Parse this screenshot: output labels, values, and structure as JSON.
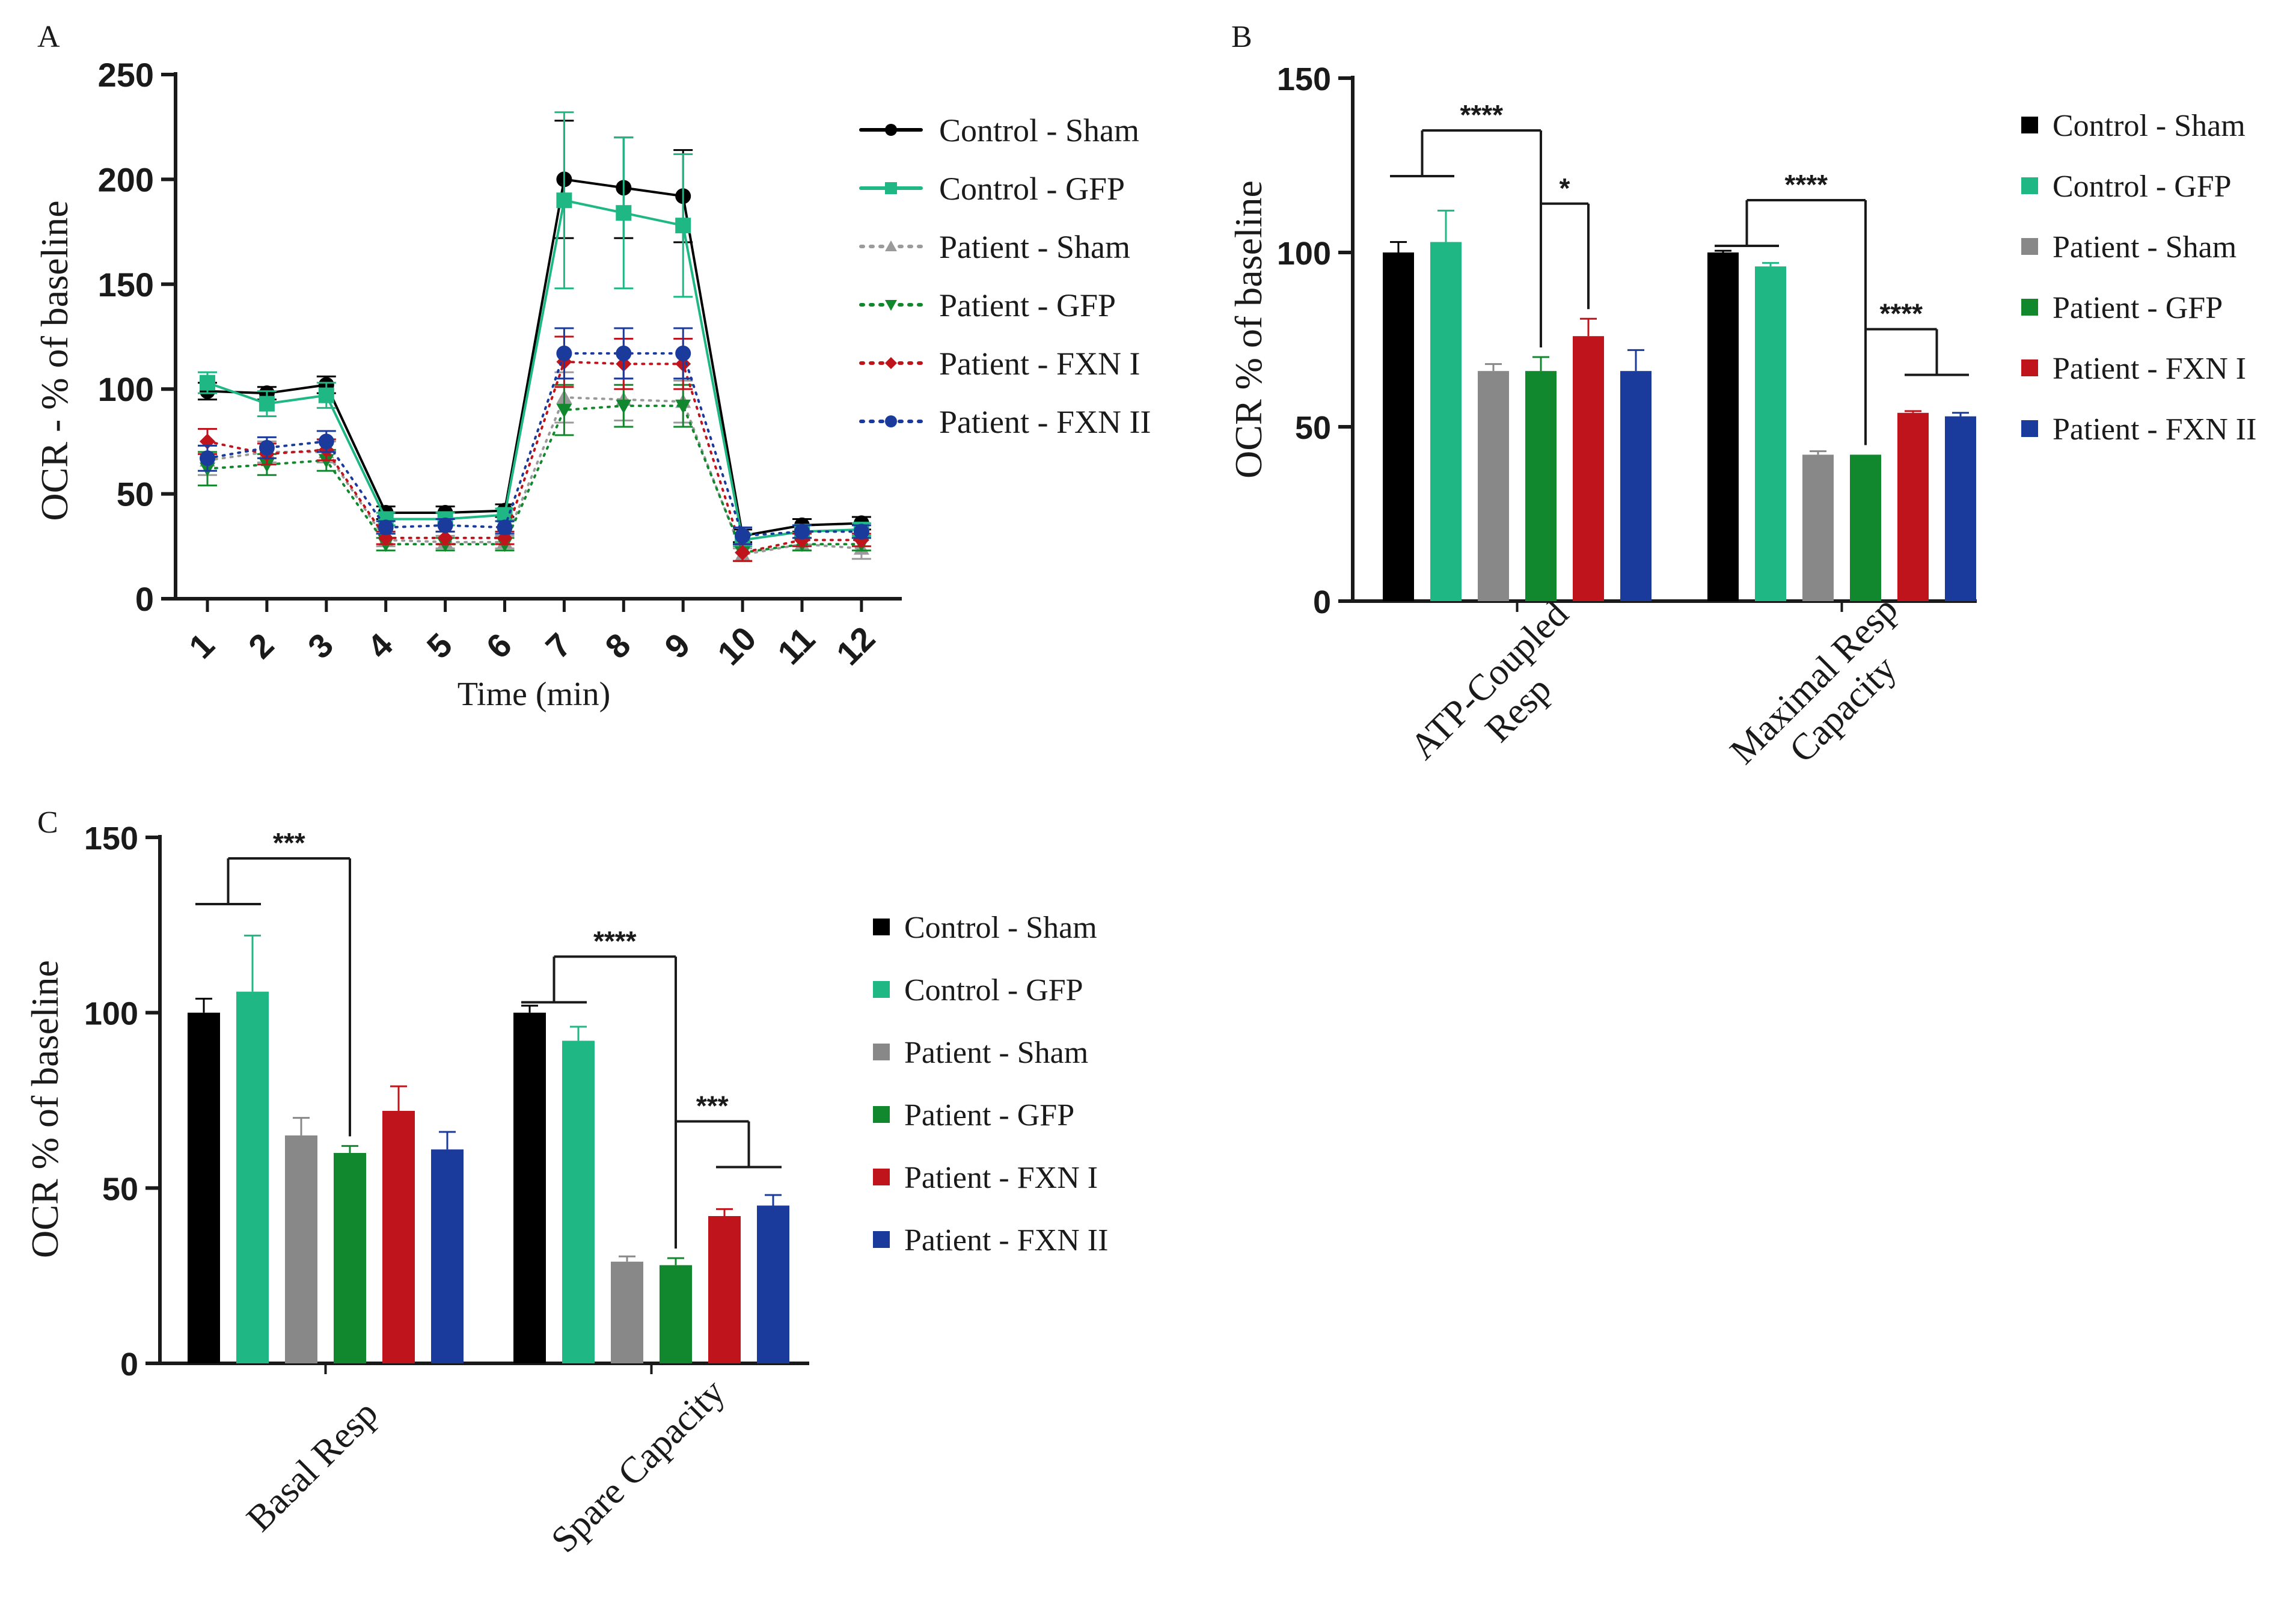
{
  "colors": {
    "control_sham": "#000000",
    "control_gfp": "#1fb884",
    "patient_sham": "#888888",
    "patient_gfp": "#12882e",
    "patient_fxn1": "#c0141c",
    "patient_fxn2": "#1a3a9c",
    "axis": "#1a1a1a"
  },
  "chart_data": [
    {
      "panel": "A",
      "type": "line",
      "title": "",
      "xlabel": "Time (min)",
      "ylabel": "OCR - % of baseline",
      "ylim": [
        0,
        250
      ],
      "yticks": [
        "0",
        "50",
        "100",
        "150",
        "200",
        "250"
      ],
      "x": [
        "1",
        "2",
        "3",
        "4",
        "5",
        "6",
        "7",
        "8",
        "9",
        "10",
        "11",
        "12"
      ],
      "legend_position": "right",
      "series": [
        {
          "name": "Control - Sham",
          "color": "#000000",
          "marker": "circle",
          "style": "solid",
          "values": [
            99,
            98,
            102,
            41,
            41,
            42,
            200,
            196,
            192,
            30,
            35,
            36
          ],
          "errors": [
            4,
            3,
            4,
            3,
            3,
            3,
            28,
            24,
            22,
            3,
            3,
            3
          ]
        },
        {
          "name": "Control - GFP",
          "color": "#1fb884",
          "marker": "square",
          "style": "solid",
          "values": [
            103,
            93,
            97,
            38,
            38,
            40,
            190,
            184,
            178,
            28,
            32,
            33
          ],
          "errors": [
            5,
            6,
            6,
            3,
            3,
            3,
            42,
            36,
            34,
            3,
            3,
            3
          ]
        },
        {
          "name": "Patient - Sham",
          "color": "#9a9a9a",
          "marker": "triangle-up",
          "style": "dotted",
          "values": [
            66,
            70,
            70,
            28,
            27,
            27,
            96,
            95,
            94,
            21,
            26,
            24
          ],
          "errors": [
            7,
            5,
            5,
            3,
            3,
            3,
            12,
            10,
            10,
            3,
            3,
            5
          ]
        },
        {
          "name": "Patient - GFP",
          "color": "#12882e",
          "marker": "triangle-down",
          "style": "dotted",
          "values": [
            62,
            64,
            66,
            26,
            26,
            26,
            90,
            92,
            92,
            22,
            26,
            26
          ],
          "errors": [
            8,
            5,
            5,
            3,
            3,
            3,
            12,
            10,
            10,
            4,
            3,
            3
          ]
        },
        {
          "name": "Patient - FXN I",
          "color": "#c0141c",
          "marker": "diamond",
          "style": "dotted",
          "values": [
            75,
            69,
            71,
            29,
            29,
            29,
            113,
            112,
            112,
            22,
            28,
            28
          ],
          "errors": [
            6,
            5,
            5,
            3,
            3,
            3,
            12,
            12,
            12,
            4,
            3,
            3
          ]
        },
        {
          "name": "Patient - FXN II",
          "color": "#1a3a9c",
          "marker": "circle",
          "style": "dotted",
          "values": [
            67,
            72,
            75,
            34,
            35,
            34,
            117,
            117,
            117,
            30,
            32,
            32
          ],
          "errors": [
            6,
            5,
            5,
            3,
            3,
            3,
            12,
            12,
            12,
            4,
            3,
            3
          ]
        }
      ]
    },
    {
      "panel": "B",
      "type": "bar",
      "title": "",
      "xlabel": "",
      "ylabel": "OCR % of baseline",
      "ylim": [
        0,
        150
      ],
      "yticks": [
        "0",
        "50",
        "100",
        "150"
      ],
      "categories": [
        "ATP-Coupled Resp",
        "Maximal Resp Capacity"
      ],
      "category_lines": [
        [
          "ATP-Coupled",
          "Resp"
        ],
        [
          "Maximal Resp",
          "Capacity"
        ]
      ],
      "legend_position": "right",
      "series": [
        {
          "name": "Control - Sham",
          "color": "#000000",
          "values": [
            100,
            100
          ],
          "errors": [
            3,
            0.5
          ]
        },
        {
          "name": "Control - GFP",
          "color": "#1fb884",
          "values": [
            103,
            96
          ],
          "errors": [
            9,
            1
          ]
        },
        {
          "name": "Patient - Sham",
          "color": "#888888",
          "values": [
            66,
            42
          ],
          "errors": [
            2,
            1
          ]
        },
        {
          "name": "Patient - GFP",
          "color": "#12882e",
          "values": [
            66,
            42
          ],
          "errors": [
            4,
            0
          ]
        },
        {
          "name": "Patient - FXN I",
          "color": "#c0141c",
          "values": [
            76,
            54
          ],
          "errors": [
            5,
            0.5
          ]
        },
        {
          "name": "Patient - FXN II",
          "color": "#1a3a9c",
          "values": [
            66,
            53
          ],
          "errors": [
            6,
            1
          ]
        }
      ],
      "annotations": [
        {
          "label": "****",
          "category": 0,
          "from": [
            0,
            1
          ],
          "to": 3,
          "y": 135
        },
        {
          "label": "*",
          "category": 0,
          "from": [
            3
          ],
          "to": 4,
          "y": 114
        },
        {
          "label": "****",
          "category": 1,
          "from": [
            0,
            1
          ],
          "to": 3,
          "y": 115
        },
        {
          "label": "****",
          "category": 1,
          "from": [
            3
          ],
          "to": [
            4,
            5
          ],
          "y": 78
        }
      ]
    },
    {
      "panel": "C",
      "type": "bar",
      "title": "",
      "xlabel": "",
      "ylabel": "OCR % of baseline",
      "ylim": [
        0,
        150
      ],
      "yticks": [
        "0",
        "50",
        "100",
        "150"
      ],
      "categories": [
        "Basal Resp",
        "Spare Capacity"
      ],
      "category_lines": [
        [
          "Basal Resp"
        ],
        [
          "Spare Capacity"
        ]
      ],
      "legend_position": "right",
      "series": [
        {
          "name": "Control - Sham",
          "color": "#000000",
          "values": [
            100,
            100
          ],
          "errors": [
            4,
            2
          ]
        },
        {
          "name": "Control - GFP",
          "color": "#1fb884",
          "values": [
            106,
            92
          ],
          "errors": [
            16,
            4
          ]
        },
        {
          "name": "Patient - Sham",
          "color": "#888888",
          "values": [
            65,
            29
          ],
          "errors": [
            5,
            1.5
          ]
        },
        {
          "name": "Patient - GFP",
          "color": "#12882e",
          "values": [
            60,
            28
          ],
          "errors": [
            2,
            2
          ]
        },
        {
          "name": "Patient - FXN I",
          "color": "#c0141c",
          "values": [
            72,
            42
          ],
          "errors": [
            7,
            2
          ]
        },
        {
          "name": "Patient - FXN II",
          "color": "#1a3a9c",
          "values": [
            61,
            45
          ],
          "errors": [
            5,
            3
          ]
        }
      ],
      "annotations": [
        {
          "label": "***",
          "category": 0,
          "from": [
            0,
            1
          ],
          "to": 3,
          "y": 144
        },
        {
          "label": "****",
          "category": 1,
          "from": [
            0,
            1
          ],
          "to": 3,
          "y": 116
        },
        {
          "label": "***",
          "category": 1,
          "from": [
            3
          ],
          "to": [
            4,
            5
          ],
          "y": 69
        }
      ]
    }
  ]
}
